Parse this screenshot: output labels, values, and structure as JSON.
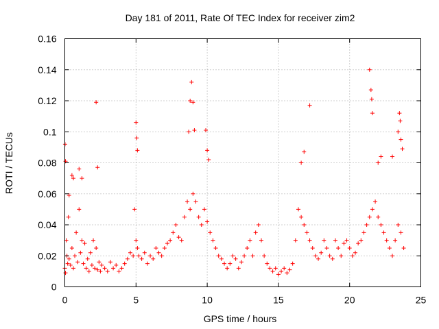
{
  "chart_data": {
    "type": "scatter",
    "title": "Day 181 of 2011, Rate Of TEC Index for receiver zim2",
    "xlabel": "GPS time / hours",
    "ylabel": "ROTI / TECUs",
    "xlim": [
      0,
      25
    ],
    "ylim": [
      0,
      0.16
    ],
    "xticks": [
      0,
      5,
      10,
      15,
      20,
      25
    ],
    "xtick_labels": [
      "0",
      "5",
      "10",
      "15",
      "20",
      "25"
    ],
    "yticks": [
      0,
      0.02,
      0.04,
      0.06,
      0.08,
      0.1,
      0.12,
      0.14,
      0.16
    ],
    "ytick_labels": [
      "0",
      "0.02",
      "0.04",
      "0.06",
      "0.08",
      "0.1",
      "0.12",
      "0.14",
      "0.16"
    ],
    "grid": true,
    "marker": "+",
    "color": "#ff0000",
    "series": [
      {
        "name": "ROTI",
        "x": [
          0.0,
          0.05,
          0.1,
          0.15,
          0.2,
          0.25,
          0.3,
          0.4,
          0.5,
          0.6,
          0.7,
          0.8,
          0.9,
          1.0,
          1.1,
          1.2,
          1.3,
          1.4,
          1.5,
          1.6,
          1.7,
          1.8,
          1.9,
          2.0,
          2.1,
          2.2,
          2.3,
          2.4,
          2.5,
          2.6,
          2.8,
          3.0,
          3.2,
          3.4,
          3.6,
          3.8,
          4.0,
          4.2,
          4.4,
          4.6,
          4.8,
          5.0,
          5.1,
          5.2,
          5.4,
          5.6,
          5.8,
          6.0,
          6.2,
          6.4,
          6.6,
          6.8,
          7.0,
          7.2,
          7.4,
          7.6,
          7.8,
          8.0,
          8.2,
          8.4,
          8.6,
          8.8,
          9.0,
          9.2,
          9.4,
          9.6,
          9.8,
          10.0,
          10.2,
          10.4,
          10.6,
          10.8,
          11.0,
          11.2,
          11.4,
          11.6,
          11.8,
          12.0,
          12.2,
          12.4,
          12.6,
          12.8,
          13.0,
          13.2,
          13.4,
          13.6,
          13.8,
          14.0,
          14.2,
          14.4,
          14.6,
          14.8,
          15.0,
          15.2,
          15.4,
          15.6,
          15.8,
          16.0,
          16.2,
          16.4,
          16.6,
          16.8,
          17.0,
          17.2,
          17.4,
          17.6,
          17.8,
          18.0,
          18.2,
          18.4,
          18.6,
          18.8,
          19.0,
          19.2,
          19.4,
          19.6,
          19.8,
          20.0,
          20.2,
          20.4,
          20.6,
          20.8,
          21.0,
          21.2,
          21.4,
          21.6,
          21.8,
          22.0,
          22.2,
          22.4,
          22.6,
          22.8,
          23.0,
          23.2,
          23.4,
          23.6,
          23.8,
          0.02,
          0.05,
          0.3,
          0.5,
          0.6,
          1.0,
          1.2,
          2.2,
          2.3,
          4.9,
          5.0,
          5.05,
          5.1,
          8.7,
          8.8,
          8.9,
          9.0,
          9.1,
          9.9,
          10.0,
          10.1,
          16.6,
          16.8,
          17.2,
          21.4,
          21.5,
          21.55,
          21.6,
          22.0,
          22.2,
          23.0,
          23.4,
          23.5,
          23.55,
          23.6,
          23.7
        ],
        "y": [
          0.012,
          0.009,
          0.03,
          0.02,
          0.015,
          0.045,
          0.018,
          0.014,
          0.025,
          0.012,
          0.02,
          0.035,
          0.016,
          0.05,
          0.022,
          0.03,
          0.015,
          0.028,
          0.012,
          0.018,
          0.01,
          0.022,
          0.014,
          0.03,
          0.012,
          0.025,
          0.011,
          0.016,
          0.01,
          0.014,
          0.012,
          0.01,
          0.016,
          0.012,
          0.014,
          0.01,
          0.012,
          0.015,
          0.018,
          0.022,
          0.02,
          0.03,
          0.025,
          0.02,
          0.018,
          0.022,
          0.015,
          0.02,
          0.018,
          0.025,
          0.022,
          0.02,
          0.025,
          0.028,
          0.03,
          0.035,
          0.04,
          0.032,
          0.03,
          0.045,
          0.055,
          0.05,
          0.06,
          0.055,
          0.045,
          0.04,
          0.05,
          0.042,
          0.035,
          0.03,
          0.025,
          0.02,
          0.018,
          0.015,
          0.012,
          0.015,
          0.02,
          0.018,
          0.012,
          0.016,
          0.02,
          0.025,
          0.03,
          0.02,
          0.035,
          0.04,
          0.03,
          0.02,
          0.015,
          0.012,
          0.01,
          0.012,
          0.008,
          0.01,
          0.012,
          0.009,
          0.011,
          0.015,
          0.03,
          0.05,
          0.045,
          0.04,
          0.035,
          0.03,
          0.025,
          0.02,
          0.018,
          0.022,
          0.03,
          0.025,
          0.02,
          0.018,
          0.03,
          0.025,
          0.02,
          0.028,
          0.03,
          0.025,
          0.02,
          0.022,
          0.028,
          0.03,
          0.035,
          0.04,
          0.045,
          0.05,
          0.055,
          0.045,
          0.04,
          0.035,
          0.03,
          0.025,
          0.02,
          0.03,
          0.04,
          0.035,
          0.025,
          0.092,
          0.081,
          0.059,
          0.072,
          0.07,
          0.076,
          0.07,
          0.119,
          0.077,
          0.05,
          0.106,
          0.096,
          0.088,
          0.1,
          0.12,
          0.132,
          0.119,
          0.101,
          0.101,
          0.088,
          0.082,
          0.08,
          0.087,
          0.117,
          0.14,
          0.127,
          0.121,
          0.112,
          0.08,
          0.084,
          0.084,
          0.1,
          0.112,
          0.107,
          0.095,
          0.089
        ]
      }
    ]
  }
}
